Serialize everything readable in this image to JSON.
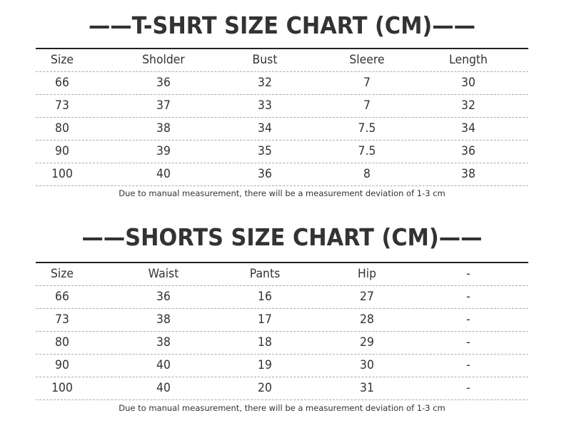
{
  "tshirt": {
    "title": "——T-SHRT SIZE CHART (CM)——",
    "headers": [
      "Size",
      "Sholder",
      "Bust",
      "Sleere",
      "Length"
    ],
    "rows": [
      [
        "66",
        "36",
        "32",
        "7",
        "30"
      ],
      [
        "73",
        "37",
        "33",
        "7",
        "32"
      ],
      [
        "80",
        "38",
        "34",
        "7.5",
        "34"
      ],
      [
        "90",
        "39",
        "35",
        "7.5",
        "36"
      ],
      [
        "100",
        "40",
        "36",
        "8",
        "38"
      ]
    ],
    "note": "Due to manual measurement, there will be a measurement deviation of 1-3 cm"
  },
  "shorts": {
    "title": "——SHORTS SIZE CHART (CM)——",
    "headers": [
      "Size",
      "Waist",
      "Pants",
      "Hip",
      "-"
    ],
    "rows": [
      [
        "66",
        "36",
        "16",
        "27",
        "-"
      ],
      [
        "73",
        "38",
        "17",
        "28",
        "-"
      ],
      [
        "80",
        "38",
        "18",
        "29",
        "-"
      ],
      [
        "90",
        "40",
        "19",
        "30",
        "-"
      ],
      [
        "100",
        "40",
        "20",
        "31",
        "-"
      ]
    ],
    "note": "Due to manual measurement, there will be a measurement deviation of 1-3 cm"
  }
}
